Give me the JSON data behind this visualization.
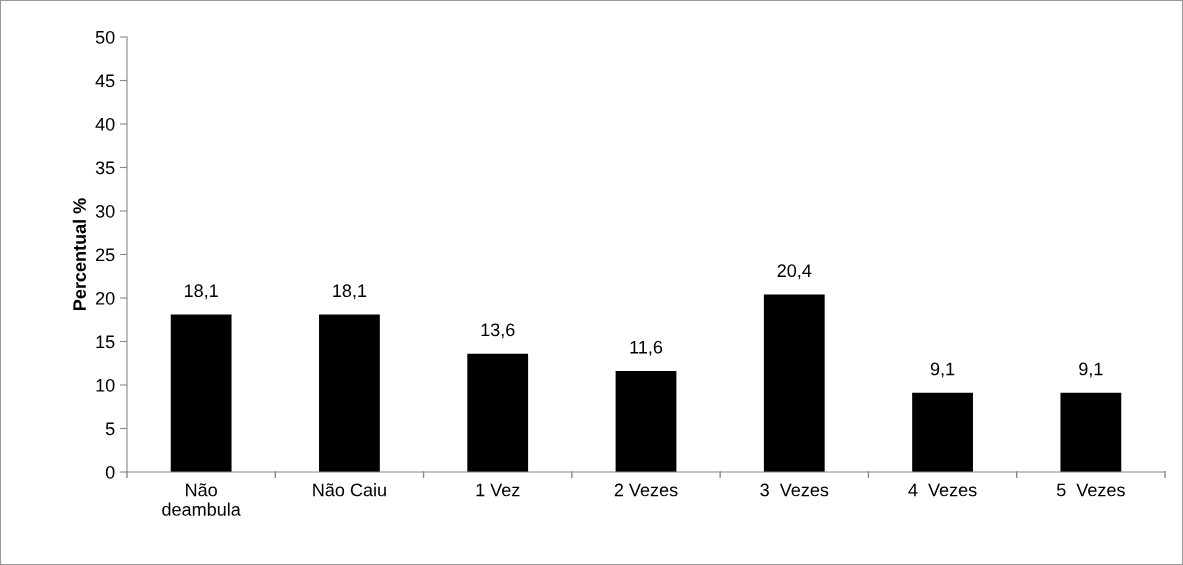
{
  "chart_data": {
    "type": "bar",
    "ylabel": "Percentual %",
    "categories": [
      "Não\ndeambula",
      "Não Caiu",
      "1 Vez",
      "2 Vezes",
      "3  Vezes",
      "4  Vezes",
      "5  Vezes"
    ],
    "values": [
      18.1,
      18.1,
      13.6,
      11.6,
      20.4,
      9.1,
      9.1
    ],
    "value_labels": [
      "18,1",
      "18,1",
      "13,6",
      "11,6",
      "20,4",
      "9,1",
      "9,1"
    ],
    "color": "#000000",
    "ylim": [
      0,
      50
    ],
    "yticks": [
      0,
      5,
      10,
      15,
      20,
      25,
      30,
      35,
      40,
      45,
      50
    ],
    "grid": false,
    "legend": false
  }
}
